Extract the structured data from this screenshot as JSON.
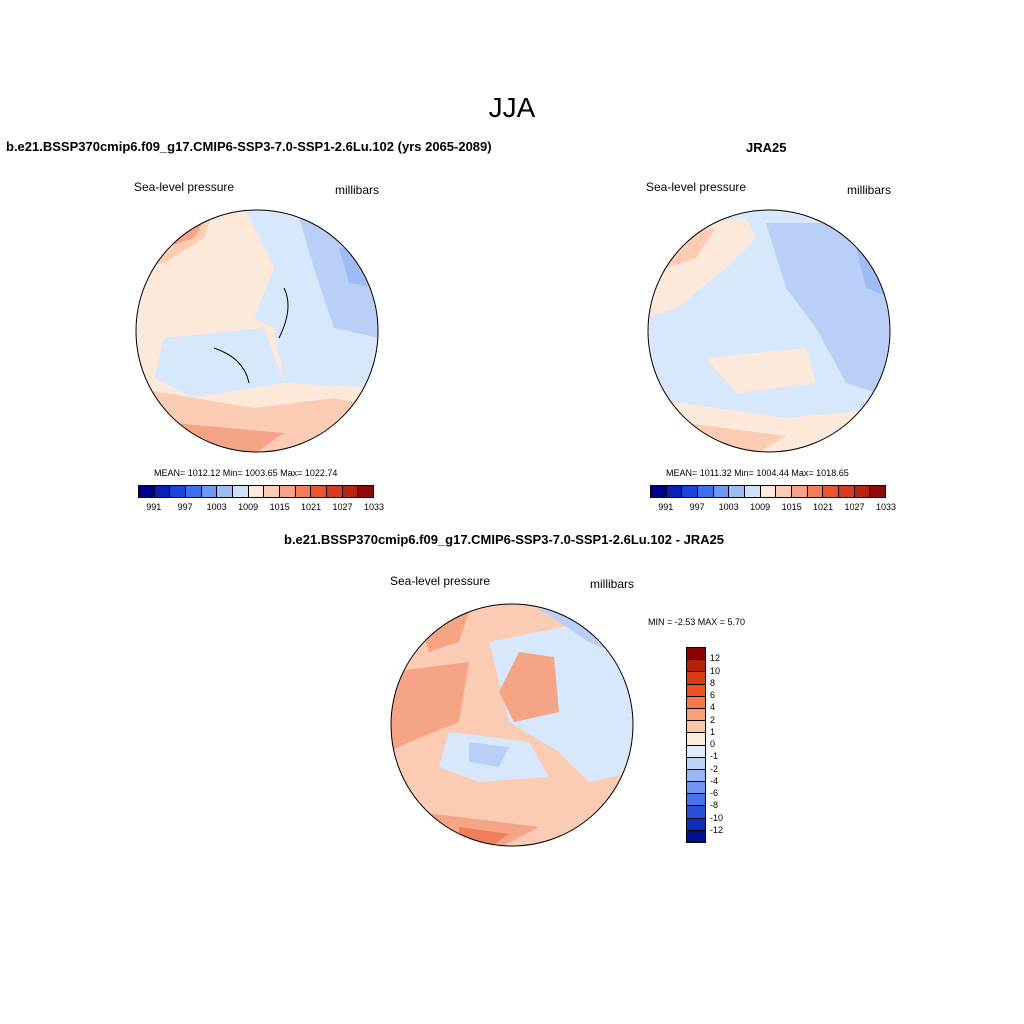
{
  "figure_title": "JJA",
  "panels": [
    {
      "id": "model",
      "title": "b.e21.BSSP370cmip6.f09_g17.CMIP6-SSP3-7.0-SSP1-2.6Lu.102 (yrs 2065-2089)",
      "left_label": "Sea-level pressure",
      "right_label": "millibars",
      "stats": "MEAN= 1012.12  Min= 1003.65  Max= 1022.74"
    },
    {
      "id": "obs",
      "title": "JRA25",
      "left_label": "Sea-level pressure",
      "right_label": "millibars",
      "stats": "MEAN= 1011.32  Min= 1004.44  Max= 1018.65"
    },
    {
      "id": "diff",
      "title": "b.e21.BSSP370cmip6.f09_g17.CMIP6-SSP3-7.0-SSP1-2.6Lu.102 - JRA25",
      "left_label": "Sea-level pressure",
      "right_label": "millibars",
      "stats": "MIN =  -2.53 MAX =   5.70"
    }
  ],
  "colorbar_abs": {
    "colors": [
      "#00008b",
      "#0a1fb4",
      "#1b45d8",
      "#3f6ff0",
      "#6e97f5",
      "#9ebcf8",
      "#cfe0fb",
      "#fde9d9",
      "#fbcbb3",
      "#f6a486",
      "#f27d5b",
      "#ec5430",
      "#d93a1c",
      "#b8240f",
      "#8b0a0a"
    ],
    "labels": [
      "991",
      "997",
      "1003",
      "1009",
      "1015",
      "1021",
      "1027",
      "1033"
    ]
  },
  "colorbar_diff": {
    "colors": [
      "#8b0000",
      "#b3200a",
      "#d83a12",
      "#f0521f",
      "#f7774a",
      "#fa9f7c",
      "#fdc7ae",
      "#fdecdc",
      "#dfecfc",
      "#bcd4f8",
      "#97b8f4",
      "#6f97ef",
      "#4a73e6",
      "#2850d6",
      "#1030bb",
      "#000e8f"
    ],
    "labels": [
      "12",
      "10",
      "8",
      "6",
      "4",
      "2",
      "1",
      "0",
      "-1",
      "-2",
      "-4",
      "-6",
      "-8",
      "-10",
      "-12"
    ]
  },
  "map_palette": {
    "ocean_blue_light": "#d8e8fc",
    "blue_mid": "#b9cff7",
    "blue_dark": "#9fbcf5",
    "peach_light": "#fde9d9",
    "salmon": "#fbcbb3",
    "orange": "#f6a486",
    "red_orange": "#f27d5b"
  }
}
